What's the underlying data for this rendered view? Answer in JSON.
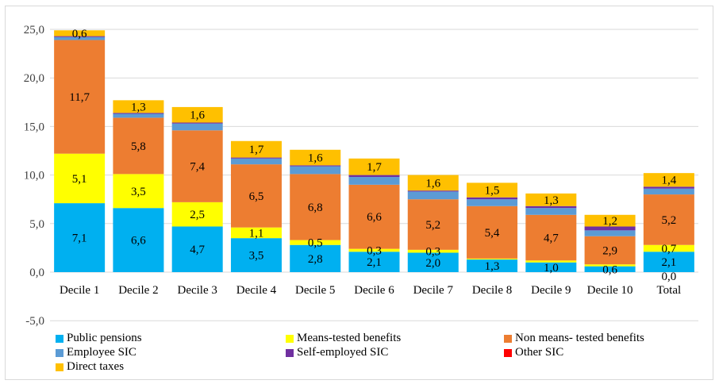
{
  "chart_data": {
    "type": "bar",
    "stacked": true,
    "categories": [
      "Decile 1",
      "Decile 2",
      "Decile 3",
      "Decile 4",
      "Decile 5",
      "Decile 6",
      "Decile 7",
      "Decile 8",
      "Decile 9",
      "Decile 10",
      "Total"
    ],
    "ylim": [
      -5,
      25
    ],
    "yticks": [
      "-5,0",
      "0,0",
      "5,0",
      "10,0",
      "15,0",
      "20,0",
      "25,0"
    ],
    "ytick_values": [
      -5,
      0,
      5,
      10,
      15,
      20,
      25
    ],
    "grid": true,
    "legend_position": "bottom",
    "series": [
      {
        "name": "Public pensions",
        "color": "#00b0f0",
        "values": [
          7.1,
          6.6,
          4.7,
          3.5,
          2.8,
          2.1,
          2.0,
          1.3,
          1.0,
          0.6,
          2.1
        ],
        "labels": [
          "7,1",
          "6,6",
          "4,7",
          "3,5",
          "2,8",
          "2,1",
          "2,0",
          "1,3",
          "1,0",
          "0,6",
          "2,1"
        ]
      },
      {
        "name": "Means-tested benefits",
        "color": "#ffff00",
        "values": [
          5.1,
          3.5,
          2.5,
          1.1,
          0.5,
          0.3,
          0.3,
          0.1,
          0.2,
          0.2,
          0.7
        ],
        "labels": [
          "5,1",
          "3,5",
          "2,5",
          "1,1",
          "0,5",
          "0,3",
          "0,3",
          "",
          "",
          "",
          "0,7"
        ]
      },
      {
        "name": "Non means- tested benefits",
        "color": "#ed7d31",
        "values": [
          11.7,
          5.8,
          7.4,
          6.5,
          6.8,
          6.6,
          5.2,
          5.4,
          4.7,
          2.9,
          5.2
        ],
        "labels": [
          "11,7",
          "5,8",
          "7,4",
          "6,5",
          "6,8",
          "6,6",
          "5,2",
          "5,4",
          "4,7",
          "2,9",
          "5,2"
        ]
      },
      {
        "name": "Employee SIC",
        "color": "#5b9bd5",
        "values": [
          0.3,
          0.4,
          0.7,
          0.6,
          0.8,
          0.8,
          0.8,
          0.7,
          0.7,
          0.6,
          0.6
        ],
        "labels": [
          "",
          "",
          "",
          "",
          "",
          "",
          "",
          "",
          "",
          "",
          ""
        ]
      },
      {
        "name": "Self-employed SIC",
        "color": "#7030a0",
        "values": [
          0.1,
          0.1,
          0.1,
          0.1,
          0.1,
          0.2,
          0.1,
          0.2,
          0.2,
          0.4,
          0.2
        ],
        "labels": [
          "",
          "",
          "",
          "",
          "",
          "",
          "",
          "",
          "",
          "",
          ""
        ]
      },
      {
        "name": "Other SIC",
        "color": "#ff0000",
        "values": [
          0.0,
          0.0,
          0.0,
          0.0,
          0.0,
          0.0,
          0.0,
          0.0,
          0.0,
          0.0,
          0.0
        ],
        "labels": [
          "",
          "",
          "",
          "",
          "",
          "",
          "",
          "",
          "",
          "",
          "0,0"
        ]
      },
      {
        "name": "Direct taxes",
        "color": "#ffc000",
        "values": [
          0.6,
          1.3,
          1.6,
          1.7,
          1.6,
          1.7,
          1.6,
          1.5,
          1.3,
          1.2,
          1.4
        ],
        "labels": [
          "0,6",
          "1,3",
          "1,6",
          "1,7",
          "1,6",
          "1,7",
          "1,6",
          "1,5",
          "1,3",
          "1,2",
          "1,4"
        ]
      }
    ]
  }
}
